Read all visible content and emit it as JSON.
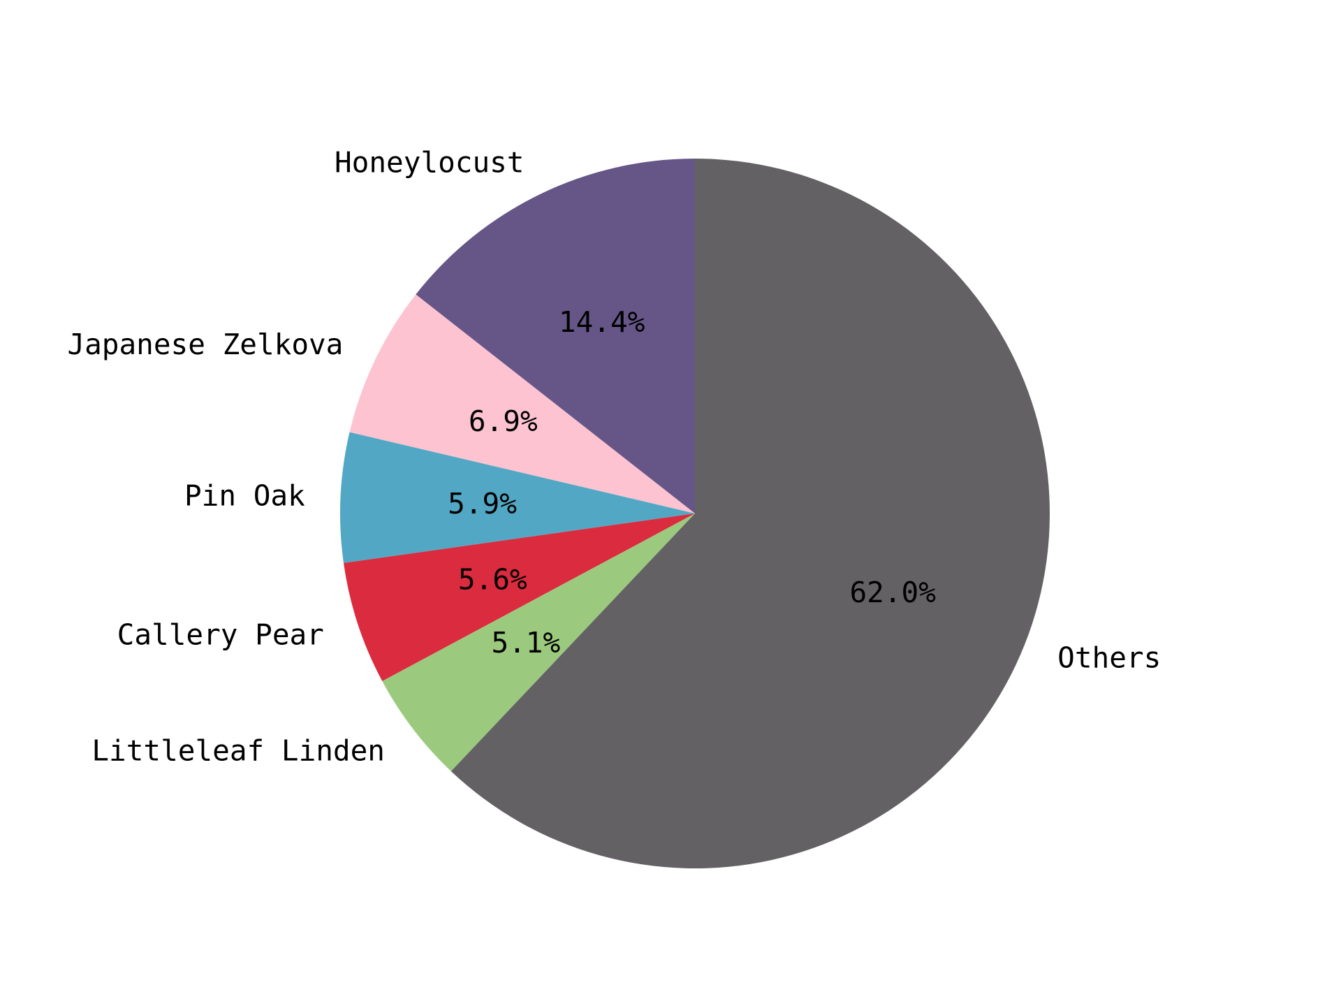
{
  "chart_data": {
    "type": "pie",
    "title": "",
    "start_angle_deg": 90,
    "direction": "counterclockwise",
    "slices": [
      {
        "label": "Honeylocust",
        "value": 14.4,
        "pct_label": "14.4%",
        "color": "#665687"
      },
      {
        "label": "Japanese Zelkova",
        "value": 6.9,
        "pct_label": "6.9%",
        "color": "#FDC3D1"
      },
      {
        "label": "Pin Oak",
        "value": 5.9,
        "pct_label": "5.9%",
        "color": "#52A8C4"
      },
      {
        "label": "Callery Pear",
        "value": 5.6,
        "pct_label": "5.6%",
        "color": "#DB2B3E"
      },
      {
        "label": "Littleleaf Linden",
        "value": 5.1,
        "pct_label": "5.1%",
        "color": "#9BCA7E"
      },
      {
        "label": "Others",
        "value": 62.0,
        "pct_label": "62.0%",
        "color": "#636164"
      }
    ]
  }
}
